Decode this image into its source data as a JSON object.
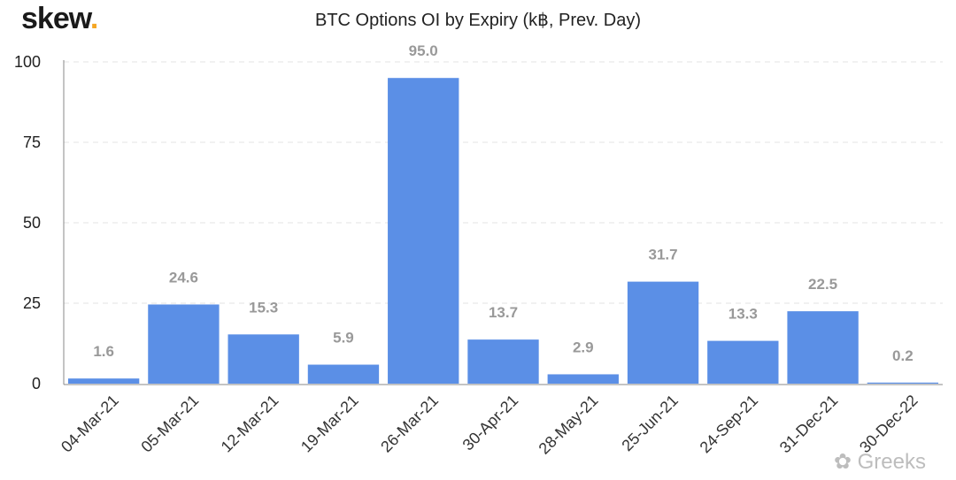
{
  "brand": {
    "name": "skew",
    "dot": "."
  },
  "watermark": "Greeks",
  "chart_data": {
    "type": "bar",
    "title": "BTC Options OI by Expiry (k฿, Prev. Day)",
    "categories": [
      "04-Mar-21",
      "05-Mar-21",
      "12-Mar-21",
      "19-Mar-21",
      "26-Mar-21",
      "30-Apr-21",
      "28-May-21",
      "25-Jun-21",
      "24-Sep-21",
      "31-Dec-21",
      "30-Dec-22"
    ],
    "values": [
      1.6,
      24.6,
      15.3,
      5.9,
      95.0,
      13.7,
      2.9,
      31.7,
      13.3,
      22.5,
      0.2
    ],
    "data_labels": [
      "1.6",
      "24.6",
      "15.3",
      "5.9",
      "95.0",
      "13.7",
      "2.9",
      "31.7",
      "13.3",
      "22.5",
      "0.2"
    ],
    "yticks": [
      "0",
      "25",
      "50",
      "75",
      "100"
    ],
    "ylim": [
      0,
      100
    ],
    "grid": true,
    "legend": "none",
    "bar_color": "#5b8fe6"
  }
}
